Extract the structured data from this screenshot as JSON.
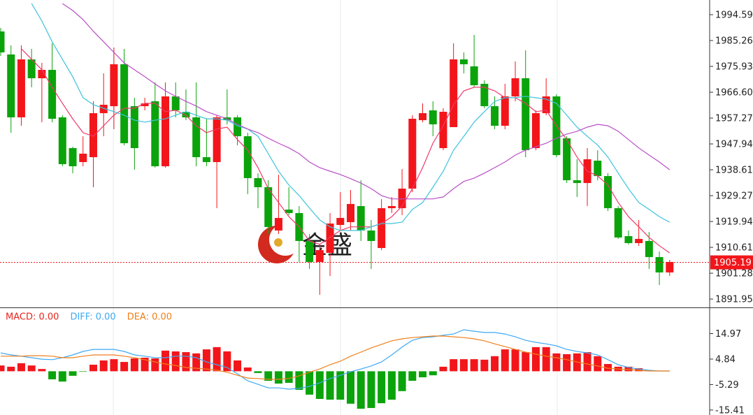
{
  "chart_data": [
    {
      "type": "candlestick",
      "up_color": "#f2161b",
      "down_color": "#0ba30b",
      "ylim": [
        1888.94,
        1999.88
      ],
      "yticks": [
        1994.59,
        1985.26,
        1975.93,
        {
          "value": 1966.6,
          "label": "1966.60"
        },
        1957.27,
        1947.94,
        1938.61,
        1929.27,
        1919.94,
        1910.61,
        1901.28,
        1891.95
      ],
      "last_price": {
        "value": 1905.19,
        "color": "#f2161b"
      },
      "watermark": "金盛",
      "open": [
        1988.53,
        1980.22,
        1957.53,
        1978.45,
        1971.64,
        1974.67,
        1957.53,
        1946.43,
        1941.39,
        1943.16,
        1959.04,
        1961.56,
        1976.69,
        1961.56,
        1961.56,
        1963.33,
        1939.88,
        1965.09,
        1959.54,
        1957.53,
        1943.16,
        1941.39,
        1957.53,
        1957.53,
        1950.72,
        1935.6,
        1932.32,
        1916.69,
        1924.25,
        1922.99,
        1912.91,
        1905.34,
        1908.62,
        1918.7,
        1919.71,
        1925.51,
        1916.69,
        1910.38,
        1924.75,
        1924.75,
        1931.81,
        1956.52,
        1960.05,
        1946.43,
        1954.0,
        1978.45,
        1975.93,
        1969.63,
        1961.56,
        1954.5,
        1965.09,
        1971.64,
        1946.43,
        1959.04,
        1965.09,
        1949.96,
        1934.84,
        1933.83,
        1941.9,
        1936.35,
        1924.75,
        1914.67,
        1912.15,
        1912.91,
        1907.11,
        1901.56
      ],
      "high": [
        1989.8,
        1983.49,
        1983.49,
        1982.23,
        1977.19,
        1984.25,
        1958.28,
        1946.94,
        1950.72,
        1963.33,
        1973.41,
        1982.74,
        1982.23,
        1964.59,
        1964.59,
        1970.13,
        1970.13,
        1970.13,
        1967.61,
        1970.13,
        1957.02,
        1958.28,
        1967.61,
        1958.28,
        1951.98,
        1937.36,
        1934.84,
        1936.86,
        1932.32,
        1925.51,
        1915.43,
        1911.65,
        1922.99,
        1930.55,
        1931.31,
        1934.84,
        1920.47,
        1928.03,
        1928.79,
        1938.87,
        1958.28,
        1962.57,
        1963.33,
        1960.8,
        1984.25,
        1980.97,
        1987.28,
        1970.89,
        1965.09,
        1969.63,
        1977.7,
        1981.73,
        1960.05,
        1971.64,
        1965.85,
        1950.72,
        1942.4,
        1946.43,
        1945.68,
        1937.36,
        1925.51,
        1916.69,
        1920.47,
        1916.18,
        1909.12,
        1906.1
      ],
      "low": [
        1979.71,
        1951.98,
        1954.5,
        1968.37,
        1955.76,
        1955.76,
        1939.88,
        1937.36,
        1939.88,
        1932.32,
        1950.72,
        1953.24,
        1947.44,
        1938.62,
        1960.05,
        1939.38,
        1939.38,
        1957.53,
        1956.52,
        1939.88,
        1939.88,
        1924.75,
        1955.01,
        1947.44,
        1929.8,
        1924.75,
        1915.43,
        1915.43,
        1922.23,
        1905.34,
        1902.82,
        1893.49,
        1900.3,
        1916.69,
        1916.69,
        1912.91,
        1902.82,
        1909.63,
        1922.99,
        1922.23,
        1930.55,
        1955.76,
        1950.72,
        1945.68,
        1954.0,
        1973.41,
        1968.37,
        1960.8,
        1953.24,
        1953.24,
        1963.33,
        1943.16,
        1945.68,
        1958.28,
        1943.16,
        1933.83,
        1928.79,
        1925.51,
        1934.84,
        1923.74,
        1913.66,
        1911.65,
        1911.14,
        1902.82,
        1897.02,
        1900.3
      ],
      "close": [
        1980.97,
        1957.53,
        1978.45,
        1971.64,
        1974.67,
        1957.02,
        1940.64,
        1939.88,
        1944.42,
        1959.04,
        1962.07,
        1976.69,
        1948.2,
        1946.43,
        1962.57,
        1939.88,
        1965.09,
        1960.05,
        1957.53,
        1943.16,
        1941.39,
        1957.53,
        1956.52,
        1950.72,
        1935.6,
        1932.32,
        1917.95,
        1921.23,
        1922.99,
        1912.91,
        1905.34,
        1909.63,
        1919.21,
        1921.23,
        1926.27,
        1916.69,
        1912.91,
        1924.75,
        1925.51,
        1931.81,
        1957.02,
        1959.04,
        1955.01,
        1959.54,
        1978.45,
        1976.69,
        1969.12,
        1961.56,
        1954.5,
        1965.09,
        1971.64,
        1945.68,
        1959.04,
        1965.09,
        1943.91,
        1934.84,
        1933.83,
        1942.4,
        1936.35,
        1924.75,
        1914.17,
        1912.15,
        1913.66,
        1907.11,
        1901.56,
        1905.34
      ],
      "series": [
        {
          "color": "#ee3a6a",
          "values": [
            null,
            null,
            1982.3,
            1978.5,
            1974.7,
            1968.4,
            1962.6,
            1957.0,
            1952.0,
            1950.7,
            1954.5,
            1958.3,
            1960.8,
            1960.8,
            1962.6,
            1962.6,
            1959.6,
            1960.1,
            1958.3,
            1954.5,
            1952.0,
            1953.3,
            1954.0,
            1949.5,
            1945.7,
            1939.4,
            1931.8,
            1926.8,
            1921.7,
            1918.0,
            1912.9,
            1911.7,
            1914.2,
            1916.7,
            1918.0,
            1918.0,
            1918.0,
            1919.2,
            1921.7,
            1925.5,
            1931.8,
            1939.4,
            1948.2,
            1954.5,
            1962.1,
            1967.1,
            1968.4,
            1968.4,
            1967.1,
            1964.6,
            1964.6,
            1962.6,
            1959.6,
            1960.1,
            1954.5,
            1949.5,
            1943.2,
            1938.1,
            1936.4,
            1933.1,
            1926.8,
            1921.7,
            1918.0,
            1914.2,
            1911.2,
            1908.6
          ]
        },
        {
          "color": "#3cc3dc",
          "values": [
            null,
            null,
            null,
            1998.6,
            1992.3,
            1984.8,
            1978.5,
            1972.2,
            1964.6,
            1962.1,
            1960.8,
            1959.6,
            1958.3,
            1956.5,
            1955.8,
            1956.5,
            1957.0,
            1958.3,
            1959.6,
            1958.3,
            1957.0,
            1957.0,
            1956.5,
            1954.5,
            1953.3,
            1950.7,
            1944.4,
            1938.1,
            1933.1,
            1929.3,
            1924.8,
            1920.5,
            1918.0,
            1916.7,
            1916.7,
            1916.7,
            1918.0,
            1919.2,
            1919.2,
            1919.7,
            1924.3,
            1926.8,
            1932.3,
            1938.1,
            1945.7,
            1950.7,
            1955.8,
            1959.6,
            1963.3,
            1964.6,
            1964.6,
            1965.1,
            1964.6,
            1964.1,
            1962.6,
            1958.3,
            1954.0,
            1950.7,
            1947.5,
            1943.2,
            1937.4,
            1931.8,
            1926.8,
            1924.3,
            1921.7,
            1919.7
          ]
        },
        {
          "color": "#b84fc6",
          "values": [
            null,
            null,
            null,
            null,
            null,
            null,
            1998.6,
            1996.1,
            1992.8,
            1988.6,
            1984.8,
            1981.0,
            1977.2,
            1974.7,
            1972.2,
            1969.6,
            1967.1,
            1965.1,
            1963.3,
            1961.6,
            1959.6,
            1958.3,
            1957.0,
            1955.0,
            1953.3,
            1952.0,
            1950.0,
            1948.2,
            1946.5,
            1944.4,
            1941.4,
            1939.4,
            1938.1,
            1936.9,
            1935.4,
            1933.8,
            1931.8,
            1929.3,
            1928.1,
            1928.1,
            1928.1,
            1928.1,
            1928.1,
            1928.8,
            1931.8,
            1934.4,
            1935.6,
            1937.4,
            1939.4,
            1941.4,
            1943.9,
            1945.7,
            1946.9,
            1948.2,
            1950.0,
            1951.5,
            1952.5,
            1954.0,
            1955.0,
            1954.5,
            1952.5,
            1949.5,
            1946.5,
            1943.9,
            1941.4,
            1938.6
          ]
        }
      ]
    },
    {
      "type": "macd",
      "ylim": [
        -17.39,
        24.83
      ],
      "yticks": [
        14.97,
        4.84,
        -5.29,
        -15.41
      ],
      "indicator_labels": [
        {
          "text": "MACD: 0.00",
          "color": "#e8251d"
        },
        {
          "text": "DIFF: 0.00",
          "color": "#3fa9f5"
        },
        {
          "text": "DEA: 0.00",
          "color": "#f07f1a"
        }
      ],
      "up_color": "#f2161b",
      "down_color": "#0ba30b",
      "histogram": [
        2.3,
        1.8,
        3.2,
        2.3,
        0.9,
        -3.2,
        -4.1,
        -1.8,
        -0.2,
        2.6,
        4.3,
        4.8,
        3.7,
        5.1,
        5.4,
        5.1,
        8.2,
        7.9,
        7.6,
        7.1,
        8.7,
        9.6,
        7.9,
        4.3,
        1.5,
        -0.7,
        -3.8,
        -4.9,
        -4.6,
        -7.4,
        -9.3,
        -11.0,
        -11.3,
        -11.3,
        -12.9,
        -14.9,
        -14.6,
        -12.7,
        -11.3,
        -7.9,
        -3.8,
        -2.4,
        -1.6,
        1.8,
        4.8,
        4.8,
        4.8,
        4.6,
        6.0,
        8.7,
        8.7,
        7.6,
        9.6,
        9.6,
        7.1,
        6.8,
        7.1,
        7.6,
        6.0,
        2.9,
        1.8,
        1.8,
        1.2,
        0.1,
        0,
        0
      ],
      "series": [
        {
          "color": "#3fa9f5",
          "values": [
            7.3,
            6.5,
            6.0,
            5.4,
            4.8,
            4.6,
            5.4,
            6.5,
            7.9,
            8.7,
            8.7,
            8.7,
            7.9,
            6.5,
            6.0,
            5.4,
            5.4,
            6.0,
            6.0,
            5.4,
            3.7,
            2.6,
            1.5,
            -1.0,
            -3.8,
            -5.2,
            -6.6,
            -6.6,
            -7.1,
            -6.8,
            -6.0,
            -4.6,
            -2.9,
            -1.6,
            -0.2,
            0.9,
            2.1,
            3.7,
            6.5,
            9.6,
            12.3,
            13.4,
            13.7,
            14.3,
            14.8,
            16.5,
            15.9,
            15.4,
            15.4,
            14.8,
            13.7,
            12.3,
            11.5,
            10.9,
            10.1,
            8.7,
            7.9,
            7.3,
            6.5,
            4.6,
            2.6,
            1.5,
            0.9,
            0.4,
            0.1,
            0.1
          ]
        },
        {
          "color": "#f07f1a",
          "values": [
            6.0,
            6.0,
            6.0,
            6.2,
            6.2,
            6.0,
            5.4,
            5.4,
            6.0,
            6.5,
            6.5,
            6.5,
            6.0,
            5.4,
            4.6,
            3.7,
            2.9,
            2.3,
            1.5,
            1.2,
            0.9,
            0.4,
            -0.4,
            -1.6,
            -2.7,
            -2.9,
            -3.2,
            -3.2,
            -2.9,
            -1.8,
            -0.4,
            0.9,
            2.6,
            4.0,
            6.0,
            7.6,
            9.3,
            10.7,
            12.1,
            12.9,
            13.4,
            13.7,
            14.0,
            14.0,
            13.7,
            13.4,
            12.9,
            12.1,
            10.9,
            9.8,
            8.7,
            7.6,
            6.8,
            6.0,
            5.4,
            4.6,
            3.7,
            2.9,
            2.1,
            1.2,
            0.9,
            0.7,
            0.4,
            0.1,
            0.1,
            0.1
          ]
        }
      ]
    }
  ]
}
